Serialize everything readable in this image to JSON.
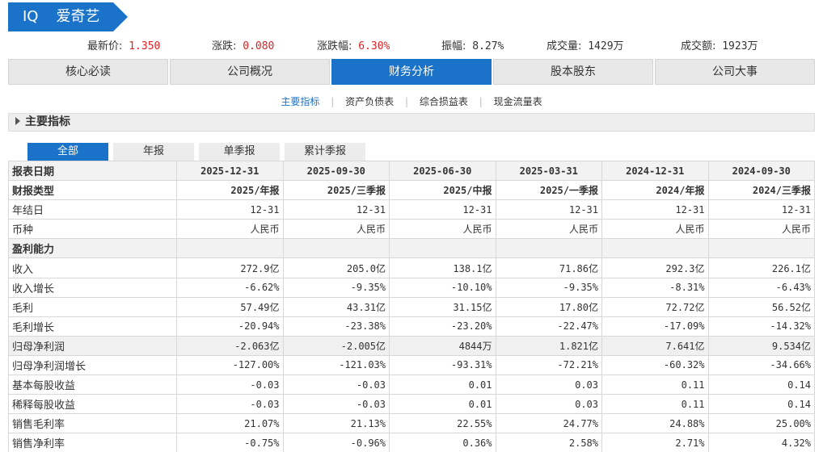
{
  "header": {
    "ticker": "IQ",
    "name": "爱奇艺",
    "accent": "#1a73c8"
  },
  "quote": {
    "price_label": "最新价:",
    "price": "1.350",
    "change_label": "涨跌:",
    "change": "0.080",
    "change_pct_label": "涨跌幅:",
    "change_pct": "6.30%",
    "amplitude_label": "振幅:",
    "amplitude": "8.27%",
    "volume_label": "成交量:",
    "volume": "1429万",
    "turnover_label": "成交额:",
    "turnover": "1923万",
    "up_color": "#e02222"
  },
  "nav": {
    "items": [
      "核心必读",
      "公司概况",
      "财务分析",
      "股本股东",
      "公司大事"
    ],
    "active": "财务分析"
  },
  "subnav": {
    "items": [
      "主要指标",
      "资产负债表",
      "综合损益表",
      "现金流量表"
    ],
    "active": "主要指标"
  },
  "section": {
    "title": "主要指标"
  },
  "tabs": {
    "items": [
      "全部",
      "年报",
      "单季报",
      "累计季报"
    ],
    "active": "全部"
  },
  "table": {
    "header_label": "报表日期",
    "dates": [
      "2025-12-31",
      "2025-09-30",
      "2025-06-30",
      "2025-03-31",
      "2024-12-31",
      "2024-09-30"
    ],
    "rows": [
      {
        "label": "财报类型",
        "values": [
          "2025/年报",
          "2025/三季报",
          "2025/中报",
          "2025/一季报",
          "2024/年报",
          "2024/三季报"
        ],
        "style": "bold"
      },
      {
        "label": "年结日",
        "values": [
          "12-31",
          "12-31",
          "12-31",
          "12-31",
          "12-31",
          "12-31"
        ],
        "style": ""
      },
      {
        "label": "币种",
        "values": [
          "人民币",
          "人民币",
          "人民币",
          "人民币",
          "人民币",
          "人民币"
        ],
        "style": ""
      },
      {
        "label": "盈利能力",
        "values": [
          "",
          "",
          "",
          "",
          "",
          ""
        ],
        "style": "section"
      },
      {
        "label": "收入",
        "values": [
          "272.9亿",
          "205.0亿",
          "138.1亿",
          "71.86亿",
          "292.3亿",
          "226.1亿"
        ],
        "style": ""
      },
      {
        "label": "收入增长",
        "values": [
          "-6.62%",
          "-9.35%",
          "-10.10%",
          "-9.35%",
          "-8.31%",
          "-6.43%"
        ],
        "style": ""
      },
      {
        "label": "毛利",
        "values": [
          "57.49亿",
          "43.31亿",
          "31.15亿",
          "17.80亿",
          "72.72亿",
          "56.52亿"
        ],
        "style": ""
      },
      {
        "label": "毛利增长",
        "values": [
          "-20.94%",
          "-23.38%",
          "-23.20%",
          "-22.47%",
          "-17.09%",
          "-14.32%"
        ],
        "style": ""
      },
      {
        "label": "归母净利润",
        "values": [
          "-2.063亿",
          "-2.005亿",
          "4844万",
          "1.821亿",
          "7.641亿",
          "9.534亿"
        ],
        "style": "hl"
      },
      {
        "label": "归母净利润增长",
        "values": [
          "-127.00%",
          "-121.03%",
          "-93.31%",
          "-72.21%",
          "-60.32%",
          "-34.66%"
        ],
        "style": ""
      },
      {
        "label": "基本每股收益",
        "values": [
          "-0.03",
          "-0.03",
          "0.01",
          "0.03",
          "0.11",
          "0.14"
        ],
        "style": ""
      },
      {
        "label": "稀释每股收益",
        "values": [
          "-0.03",
          "-0.03",
          "0.01",
          "0.03",
          "0.11",
          "0.14"
        ],
        "style": ""
      },
      {
        "label": "销售毛利率",
        "values": [
          "21.07%",
          "21.13%",
          "22.55%",
          "24.77%",
          "24.88%",
          "25.00%"
        ],
        "style": ""
      },
      {
        "label": "销售净利率",
        "values": [
          "-0.75%",
          "-0.96%",
          "0.36%",
          "2.58%",
          "2.71%",
          "4.32%"
        ],
        "style": ""
      }
    ]
  }
}
